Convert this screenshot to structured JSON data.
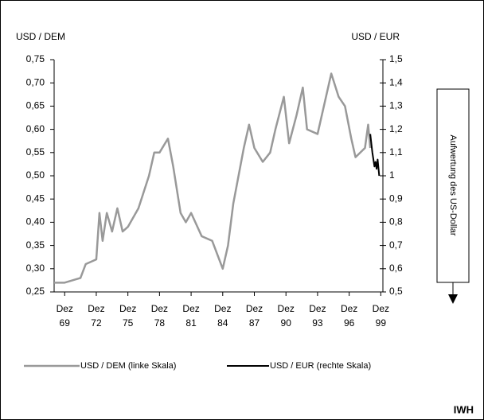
{
  "chart_data": {
    "type": "line",
    "y_label": "USD / DEM",
    "y2_label": "USD / EUR",
    "annotation": "Aufwertung des US-Dollar",
    "source": "IWH",
    "xlim": [
      1969,
      2000.2
    ],
    "xticks": [
      {
        "value": 1970,
        "label": "Dez 69"
      },
      {
        "value": 1973,
        "label": "Dez 72"
      },
      {
        "value": 1976,
        "label": "Dez 75"
      },
      {
        "value": 1979,
        "label": "Dez 78"
      },
      {
        "value": 1982,
        "label": "Dez 81"
      },
      {
        "value": 1985,
        "label": "Dez 84"
      },
      {
        "value": 1988,
        "label": "Dez 87"
      },
      {
        "value": 1991,
        "label": "Dez 90"
      },
      {
        "value": 1994,
        "label": "Dez 93"
      },
      {
        "value": 1997,
        "label": "Dez 96"
      },
      {
        "value": 2000,
        "label": "Dez 99"
      }
    ],
    "ylim": [
      0.25,
      0.75
    ],
    "yticks": [
      {
        "value": 0.25,
        "label": "0,25"
      },
      {
        "value": 0.3,
        "label": "0,30"
      },
      {
        "value": 0.35,
        "label": "0,35"
      },
      {
        "value": 0.4,
        "label": "0,40"
      },
      {
        "value": 0.45,
        "label": "0,45"
      },
      {
        "value": 0.5,
        "label": "0,50"
      },
      {
        "value": 0.55,
        "label": "0,55"
      },
      {
        "value": 0.6,
        "label": "0,60"
      },
      {
        "value": 0.65,
        "label": "0,65"
      },
      {
        "value": 0.7,
        "label": "0,70"
      },
      {
        "value": 0.75,
        "label": "0,75"
      }
    ],
    "y2lim": [
      0.5,
      1.5
    ],
    "y2ticks": [
      {
        "value": 0.5,
        "label": "0,5"
      },
      {
        "value": 0.6,
        "label": "0,6"
      },
      {
        "value": 0.7,
        "label": "0,7"
      },
      {
        "value": 0.8,
        "label": "0,8"
      },
      {
        "value": 0.9,
        "label": "0,9"
      },
      1,
      {
        "value": 1.1,
        "label": "1,1"
      },
      {
        "value": 1.2,
        "label": "1,2"
      },
      {
        "value": 1.3,
        "label": "1,3"
      },
      {
        "value": 1.4,
        "label": "1,4"
      },
      {
        "value": 1.5,
        "label": "1,5"
      }
    ],
    "series": [
      {
        "name": "USD / DEM (linke Skala)",
        "color": "#999999",
        "x": [
          1969,
          1970,
          1971.5,
          1972,
          1973,
          1973.3,
          1973.6,
          1974,
          1974.5,
          1975,
          1975.5,
          1976,
          1977,
          1978,
          1978.5,
          1979,
          1979.8,
          1980.3,
          1981,
          1981.5,
          1982,
          1983,
          1984,
          1985,
          1985.5,
          1986,
          1987,
          1987.5,
          1988,
          1988.8,
          1989.5,
          1990,
          1990.8,
          1991.3,
          1992,
          1992.6,
          1993,
          1994,
          1995.3,
          1996,
          1996.6,
          1997.2,
          1997.6,
          1998.5,
          1998.8,
          1999
        ],
        "values": [
          0.27,
          0.27,
          0.28,
          0.31,
          0.32,
          0.42,
          0.36,
          0.42,
          0.38,
          0.43,
          0.38,
          0.39,
          0.43,
          0.5,
          0.55,
          0.55,
          0.58,
          0.52,
          0.42,
          0.4,
          0.42,
          0.37,
          0.36,
          0.3,
          0.35,
          0.44,
          0.56,
          0.61,
          0.56,
          0.53,
          0.55,
          0.6,
          0.67,
          0.57,
          0.63,
          0.69,
          0.6,
          0.59,
          0.72,
          0.67,
          0.65,
          0.58,
          0.54,
          0.56,
          0.61,
          0.56
        ]
      },
      {
        "name": "USD / EUR (rechte Skala)",
        "color": "#000000",
        "axis": "y2",
        "x": [
          1999,
          1999.2,
          1999.4,
          1999.5,
          1999.6,
          1999.7,
          1999.85
        ],
        "values": [
          1.18,
          1.1,
          1.04,
          1.06,
          1.03,
          1.07,
          1.0
        ]
      }
    ]
  }
}
